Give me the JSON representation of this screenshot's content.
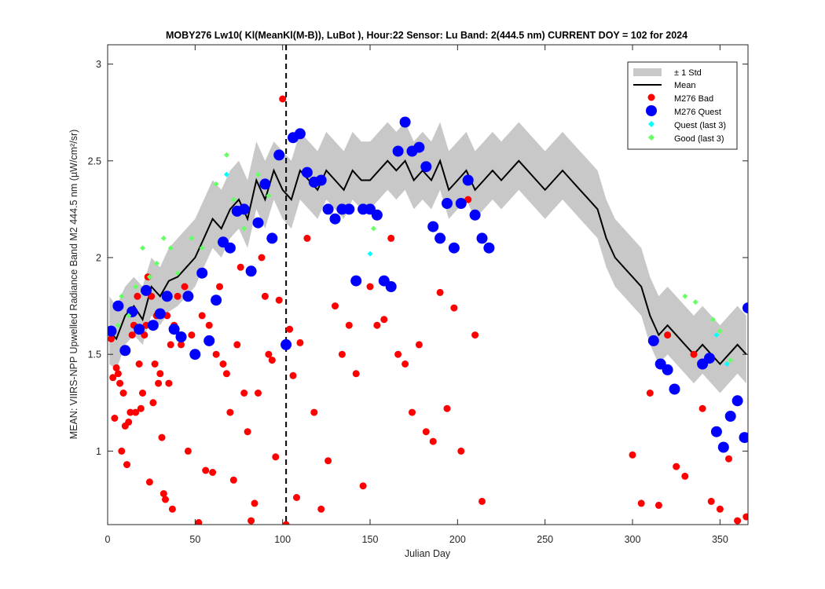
{
  "chart_data": {
    "type": "scatter",
    "title": "MOBY276   Lw10( Kl(MeanKl(M-B)), LuBot ),    Hour:22 Sensor: Lu Band: 2(444.5 nm)    CURRENT DOY = 102 for 2024",
    "xlabel": "Julian Day",
    "ylabel": "MEAN: VIIRS-NPP Upwelled Radiance Band M2 444.5 nm (µW/cm²/sr)",
    "xlim": [
      0,
      366
    ],
    "ylim": [
      0.62,
      3.1
    ],
    "xticks": [
      0,
      50,
      100,
      150,
      200,
      250,
      300,
      350
    ],
    "yticks": [
      1,
      1.5,
      2,
      2.5,
      3
    ],
    "xtick_labels": [
      "0",
      "50",
      "100",
      "150",
      "200",
      "250",
      "300",
      "350"
    ],
    "ytick_labels": [
      "1",
      "1.5",
      "2",
      "2.5",
      "3"
    ],
    "current_doy": 102,
    "legend_position": "top-right",
    "grid": false,
    "legend": [
      {
        "key": "std",
        "label": "± 1 Std"
      },
      {
        "key": "mean",
        "label": "Mean"
      },
      {
        "key": "bad",
        "label": "M276 Bad"
      },
      {
        "key": "quest",
        "label": "M276 Quest"
      },
      {
        "key": "quest_last3",
        "label": "Quest (last 3)"
      },
      {
        "key": "good_last3",
        "label": "Good (last 3)"
      }
    ],
    "colors": {
      "std": "#c8c8c8",
      "mean": "#000000",
      "bad": "#ff0000",
      "quest": "#0000ff",
      "quest_last3": "#00ffff",
      "good_last3": "#66ff66"
    },
    "mean_series": {
      "x": [
        1,
        5,
        10,
        15,
        20,
        25,
        30,
        35,
        40,
        45,
        50,
        55,
        60,
        65,
        70,
        75,
        80,
        85,
        90,
        95,
        100,
        105,
        110,
        115,
        120,
        125,
        130,
        135,
        140,
        145,
        150,
        155,
        160,
        165,
        170,
        175,
        180,
        185,
        190,
        195,
        200,
        205,
        210,
        215,
        220,
        225,
        230,
        235,
        240,
        245,
        250,
        255,
        260,
        265,
        270,
        275,
        280,
        285,
        290,
        295,
        300,
        305,
        310,
        315,
        320,
        325,
        330,
        335,
        340,
        345,
        350,
        355,
        360,
        365
      ],
      "y": [
        1.62,
        1.58,
        1.7,
        1.75,
        1.68,
        1.85,
        1.8,
        1.88,
        1.9,
        1.95,
        2.0,
        2.1,
        2.2,
        2.15,
        2.25,
        2.3,
        2.2,
        2.4,
        2.3,
        2.45,
        2.35,
        2.3,
        2.45,
        2.4,
        2.35,
        2.45,
        2.4,
        2.35,
        2.45,
        2.4,
        2.4,
        2.45,
        2.5,
        2.45,
        2.5,
        2.4,
        2.45,
        2.4,
        2.5,
        2.35,
        2.4,
        2.45,
        2.35,
        2.4,
        2.45,
        2.4,
        2.45,
        2.5,
        2.45,
        2.4,
        2.35,
        2.4,
        2.45,
        2.4,
        2.35,
        2.3,
        2.25,
        2.1,
        2.0,
        1.95,
        1.9,
        1.85,
        1.7,
        1.6,
        1.65,
        1.6,
        1.55,
        1.5,
        1.55,
        1.5,
        1.45,
        1.5,
        1.55,
        1.5
      ]
    },
    "std_band": {
      "x": [
        1,
        5,
        10,
        15,
        20,
        25,
        30,
        35,
        40,
        45,
        50,
        55,
        60,
        65,
        70,
        75,
        80,
        85,
        90,
        95,
        100,
        105,
        110,
        115,
        120,
        125,
        130,
        135,
        140,
        145,
        150,
        155,
        160,
        165,
        170,
        175,
        180,
        185,
        190,
        195,
        200,
        205,
        210,
        215,
        220,
        225,
        230,
        235,
        240,
        245,
        250,
        255,
        260,
        265,
        270,
        275,
        280,
        285,
        290,
        295,
        300,
        305,
        310,
        315,
        320,
        325,
        330,
        335,
        340,
        345,
        350,
        355,
        360,
        365
      ],
      "lower": [
        1.45,
        1.42,
        1.55,
        1.6,
        1.55,
        1.7,
        1.65,
        1.72,
        1.75,
        1.8,
        1.85,
        1.95,
        2.05,
        2.0,
        2.1,
        2.15,
        2.05,
        2.25,
        2.15,
        2.3,
        2.2,
        2.15,
        2.3,
        2.25,
        2.2,
        2.3,
        2.25,
        2.2,
        2.3,
        2.25,
        2.25,
        2.3,
        2.35,
        2.3,
        2.35,
        2.25,
        2.3,
        2.25,
        2.35,
        2.2,
        2.25,
        2.3,
        2.2,
        2.25,
        2.3,
        2.25,
        2.3,
        2.35,
        2.3,
        2.25,
        2.2,
        2.25,
        2.3,
        2.25,
        2.2,
        2.15,
        2.1,
        1.95,
        1.85,
        1.8,
        1.75,
        1.7,
        1.55,
        1.45,
        1.5,
        1.45,
        1.4,
        1.35,
        1.4,
        1.35,
        1.3,
        1.35,
        1.4,
        1.35
      ],
      "upper": [
        1.8,
        1.75,
        1.85,
        1.9,
        1.85,
        2.0,
        1.95,
        2.05,
        2.1,
        2.15,
        2.2,
        2.3,
        2.4,
        2.35,
        2.45,
        2.5,
        2.4,
        2.6,
        2.5,
        2.6,
        2.55,
        2.5,
        2.65,
        2.6,
        2.55,
        2.65,
        2.6,
        2.55,
        2.65,
        2.6,
        2.6,
        2.65,
        2.7,
        2.65,
        2.7,
        2.6,
        2.65,
        2.6,
        2.7,
        2.55,
        2.6,
        2.65,
        2.55,
        2.6,
        2.65,
        2.6,
        2.65,
        2.7,
        2.65,
        2.6,
        2.55,
        2.6,
        2.65,
        2.6,
        2.55,
        2.5,
        2.45,
        2.3,
        2.2,
        2.15,
        2.1,
        2.05,
        1.9,
        1.8,
        1.85,
        1.8,
        1.75,
        1.7,
        1.75,
        1.7,
        1.65,
        1.7,
        1.75,
        1.7
      ]
    },
    "bad_points": {
      "x": [
        2,
        3,
        4,
        5,
        6,
        7,
        8,
        9,
        10,
        11,
        12,
        13,
        14,
        15,
        16,
        17,
        18,
        19,
        20,
        21,
        22,
        23,
        24,
        25,
        26,
        27,
        28,
        29,
        30,
        31,
        32,
        33,
        34,
        35,
        36,
        37,
        38,
        40,
        42,
        44,
        46,
        48,
        50,
        52,
        54,
        56,
        58,
        60,
        62,
        64,
        66,
        68,
        70,
        72,
        74,
        76,
        78,
        80,
        82,
        84,
        86,
        88,
        90,
        92,
        94,
        96,
        98,
        100,
        102,
        104,
        106,
        108,
        110,
        114,
        118,
        122,
        126,
        130,
        134,
        138,
        142,
        146,
        150,
        154,
        158,
        162,
        166,
        170,
        174,
        178,
        182,
        186,
        190,
        194,
        198,
        202,
        206,
        210,
        214,
        300,
        305,
        310,
        315,
        320,
        325,
        330,
        335,
        340,
        345,
        350,
        355,
        360,
        365
      ],
      "y": [
        1.58,
        1.38,
        1.17,
        1.43,
        1.4,
        1.35,
        1.0,
        1.3,
        1.13,
        0.93,
        1.15,
        1.2,
        1.6,
        1.65,
        1.2,
        1.8,
        1.45,
        1.22,
        1.3,
        1.6,
        1.65,
        1.9,
        0.84,
        1.8,
        1.25,
        1.45,
        1.7,
        1.35,
        1.4,
        1.07,
        0.78,
        0.75,
        1.7,
        1.35,
        1.55,
        0.7,
        1.65,
        1.8,
        1.55,
        1.85,
        1.0,
        1.6,
        1.5,
        0.63,
        1.7,
        0.9,
        1.65,
        0.89,
        1.5,
        1.85,
        1.45,
        1.4,
        1.2,
        0.85,
        1.55,
        1.95,
        1.3,
        1.1,
        0.64,
        0.73,
        1.3,
        2.0,
        1.8,
        1.5,
        1.47,
        0.97,
        1.78,
        2.82,
        0.62,
        1.63,
        1.39,
        0.76,
        1.56,
        2.1,
        1.2,
        0.7,
        0.95,
        1.75,
        1.5,
        1.65,
        1.4,
        0.82,
        1.85,
        1.65,
        1.68,
        2.1,
        1.5,
        1.45,
        1.2,
        1.55,
        1.1,
        1.05,
        1.82,
        1.22,
        1.74,
        1.0,
        2.3,
        1.6,
        0.74,
        0.98,
        0.73,
        1.3,
        0.72,
        1.6,
        0.92,
        0.87,
        1.5,
        1.22,
        0.74,
        0.7,
        0.96,
        0.64,
        0.66
      ]
    },
    "quest_points": {
      "x": [
        2,
        6,
        10,
        14,
        18,
        22,
        26,
        30,
        34,
        38,
        42,
        46,
        50,
        54,
        58,
        62,
        66,
        70,
        74,
        78,
        82,
        86,
        90,
        94,
        98,
        102,
        106,
        110,
        114,
        118,
        122,
        126,
        130,
        134,
        138,
        142,
        146,
        150,
        154,
        158,
        162,
        166,
        170,
        174,
        178,
        182,
        186,
        190,
        194,
        198,
        202,
        206,
        210,
        214,
        218,
        312,
        316,
        320,
        324,
        340,
        344,
        348,
        352,
        356,
        360,
        364,
        366
      ],
      "y": [
        1.62,
        1.75,
        1.52,
        1.72,
        1.63,
        1.83,
        1.65,
        1.71,
        1.8,
        1.63,
        1.59,
        1.8,
        1.5,
        1.92,
        1.57,
        1.78,
        2.08,
        2.05,
        2.24,
        2.25,
        1.93,
        2.18,
        2.38,
        2.1,
        2.53,
        1.55,
        2.62,
        2.64,
        2.44,
        2.39,
        2.4,
        2.25,
        2.2,
        2.25,
        2.25,
        1.88,
        2.25,
        2.25,
        2.22,
        1.88,
        1.85,
        2.55,
        2.7,
        2.55,
        2.57,
        2.47,
        2.16,
        2.1,
        2.28,
        2.05,
        2.28,
        2.4,
        2.22,
        2.1,
        2.05,
        1.57,
        1.45,
        1.42,
        1.32,
        1.45,
        1.48,
        1.1,
        1.02,
        1.18,
        1.26,
        1.07,
        1.74
      ]
    },
    "quest_last3_points": {
      "x": [
        68,
        150,
        348,
        354
      ],
      "y": [
        2.43,
        2.02,
        1.6,
        1.45
      ]
    },
    "good_last3_points": {
      "x": [
        6,
        8,
        12,
        16,
        20,
        24,
        28,
        32,
        36,
        40,
        48,
        54,
        62,
        68,
        72,
        78,
        86,
        92,
        152,
        330,
        336,
        346,
        350,
        356
      ],
      "y": [
        1.65,
        1.8,
        1.7,
        1.85,
        2.05,
        1.9,
        1.97,
        2.1,
        2.05,
        1.92,
        2.1,
        2.05,
        2.38,
        2.53,
        2.3,
        2.15,
        2.43,
        2.32,
        2.15,
        1.8,
        1.77,
        1.68,
        1.62,
        1.47
      ]
    }
  }
}
